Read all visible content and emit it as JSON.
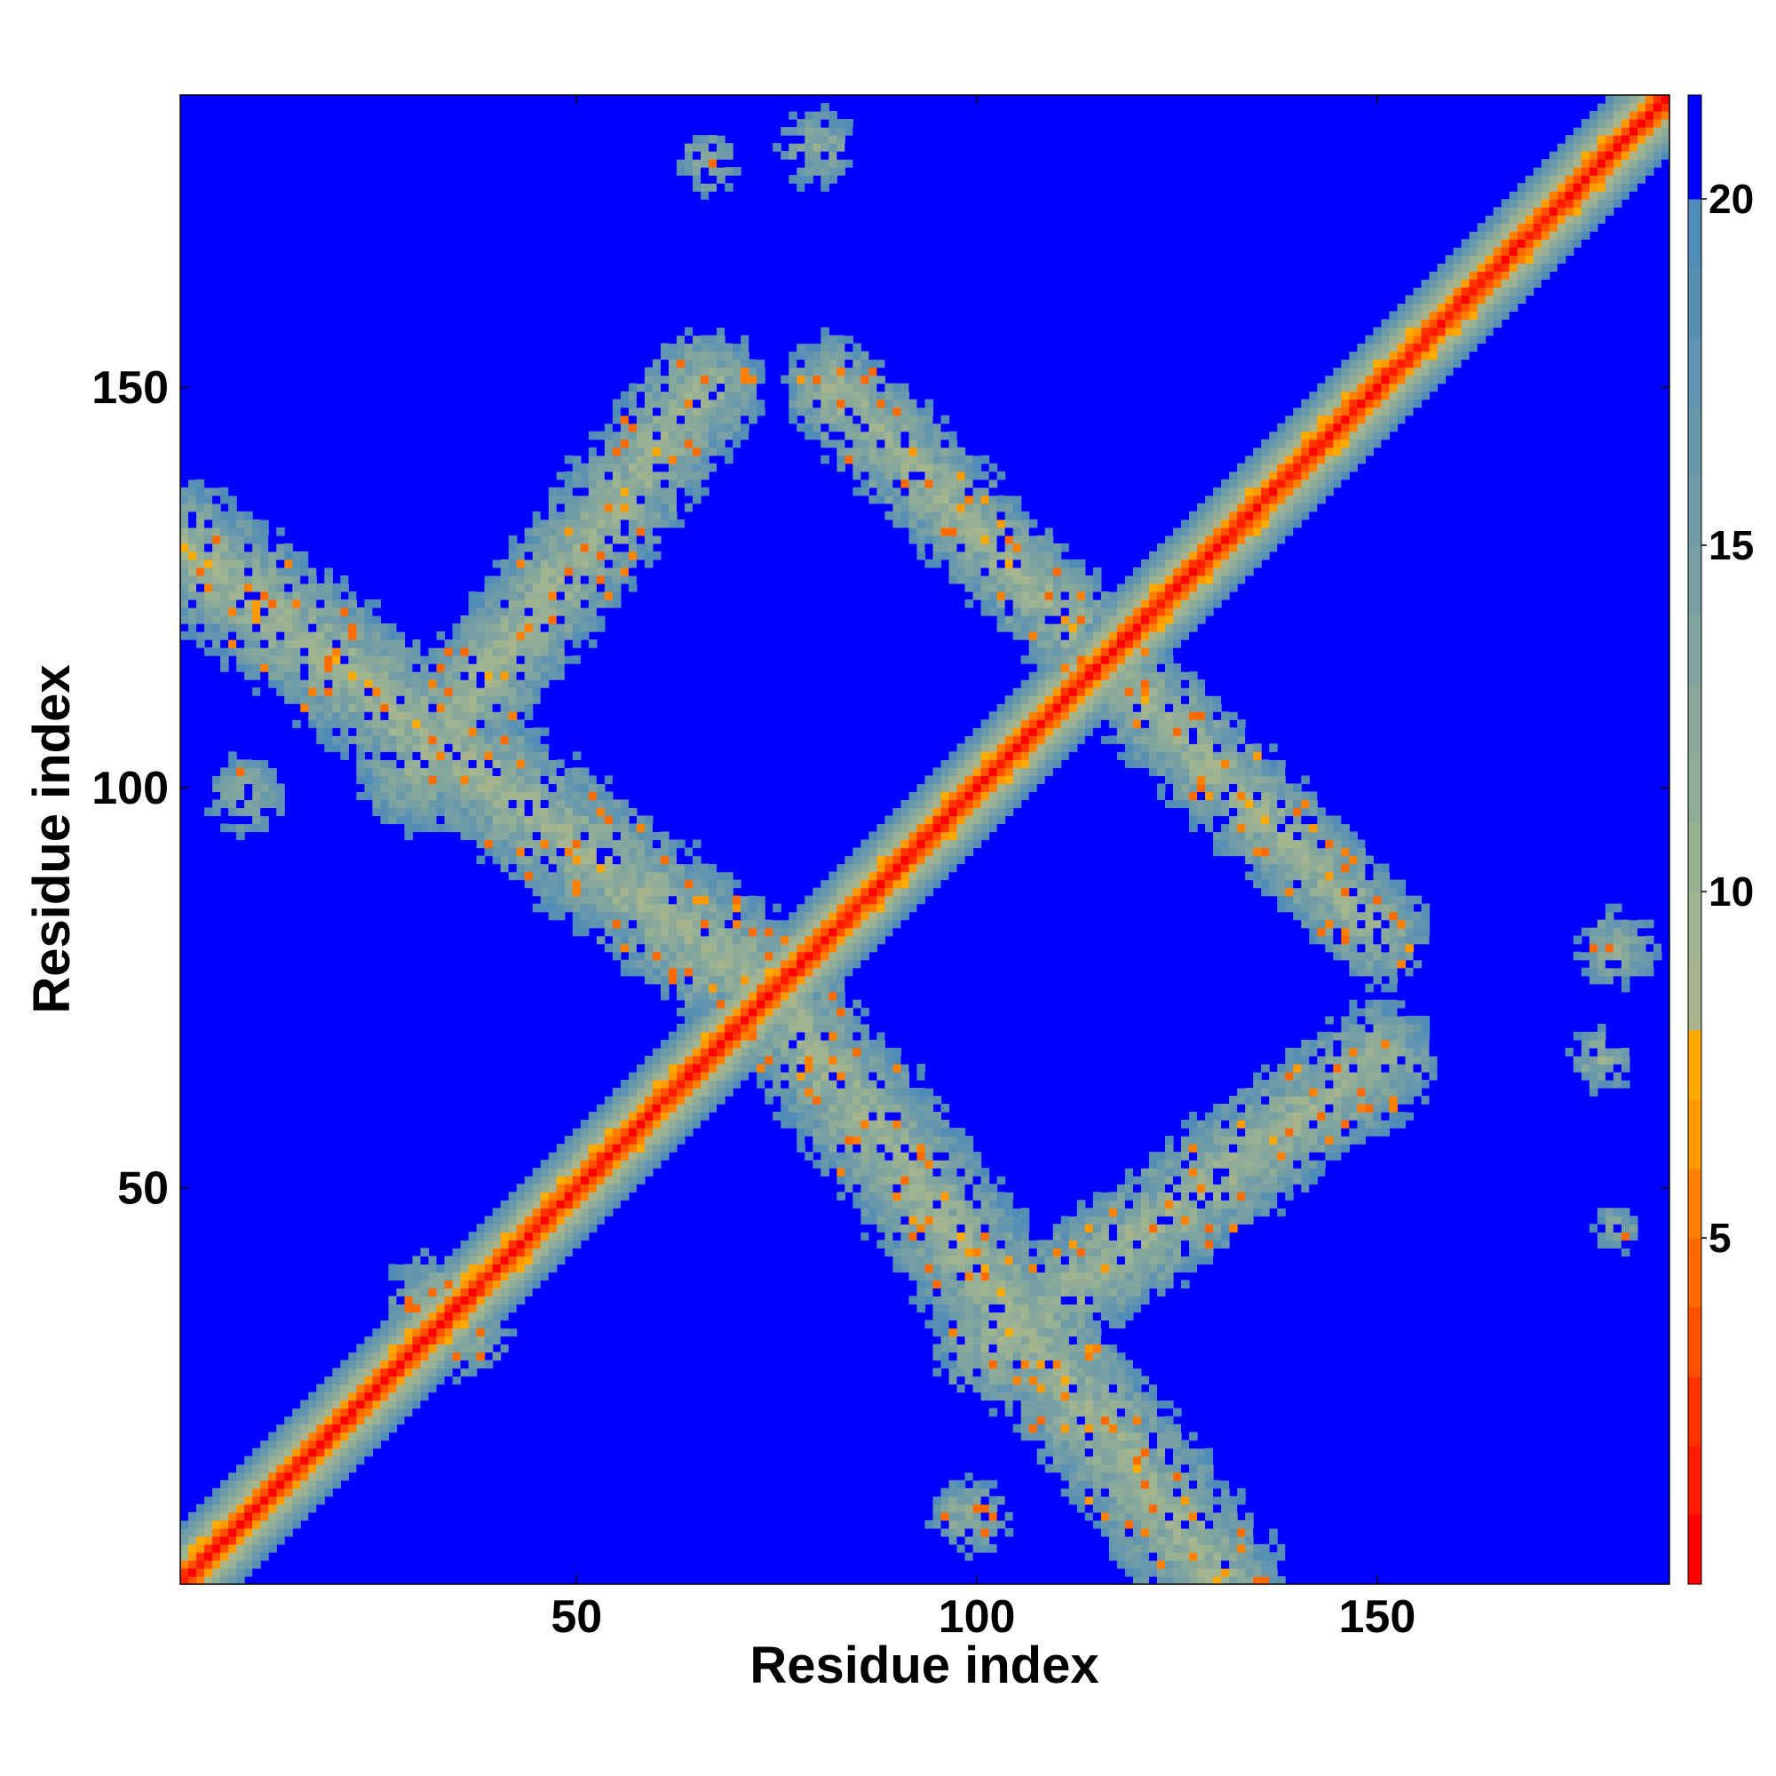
{
  "chart_data": {
    "type": "heatmap",
    "title": "",
    "xlabel": "Residue index",
    "ylabel": "Residue index",
    "n_residues": 186,
    "xlim": [
      1,
      186
    ],
    "ylim": [
      1,
      186
    ],
    "x_ticks": [
      50,
      100,
      150
    ],
    "y_ticks": [
      50,
      100,
      150
    ],
    "colorbar": {
      "range": [
        0,
        21.5
      ],
      "ticks": [
        5,
        10,
        15,
        20
      ],
      "levels": [
        {
          "max": 1,
          "color": "#ff0000"
        },
        {
          "max": 2,
          "color": "#ff1a00"
        },
        {
          "max": 3,
          "color": "#ff3300"
        },
        {
          "max": 4,
          "color": "#ff5000"
        },
        {
          "max": 5,
          "color": "#ff6a00"
        },
        {
          "max": 6,
          "color": "#ff8000"
        },
        {
          "max": 7,
          "color": "#ff9a00"
        },
        {
          "max": 8,
          "color": "#ffaa00"
        },
        {
          "max": 9,
          "color": "#a8b48c"
        },
        {
          "max": 10,
          "color": "#a0b490"
        },
        {
          "max": 11,
          "color": "#98b094"
        },
        {
          "max": 12,
          "color": "#90ac98"
        },
        {
          "max": 13,
          "color": "#88a89c"
        },
        {
          "max": 14,
          "color": "#80a4a0"
        },
        {
          "max": 15,
          "color": "#78a0a4"
        },
        {
          "max": 16,
          "color": "#709ca8"
        },
        {
          "max": 17,
          "color": "#6898ac"
        },
        {
          "max": 18,
          "color": "#6094b0"
        },
        {
          "max": 19,
          "color": "#5890b4"
        },
        {
          "max": 20,
          "color": "#508cb8"
        },
        {
          "max": 21.5,
          "color": "#0000ff"
        }
      ]
    },
    "bands": [
      {
        "kind": "diagonal",
        "from": [
          1,
          1
        ],
        "to": [
          186,
          186
        ],
        "width": 8.5
      },
      {
        "kind": "off-diagonal",
        "from": [
          1,
          130
        ],
        "to": [
          72,
          76
        ],
        "width": 9
      },
      {
        "kind": "off-diagonal",
        "from": [
          76,
          72
        ],
        "to": [
          130,
          1
        ],
        "width": 9
      },
      {
        "kind": "off-diagonal",
        "from": [
          30,
          102
        ],
        "to": [
          66,
          150
        ],
        "width": 8
      },
      {
        "kind": "off-diagonal",
        "from": [
          102,
          30
        ],
        "to": [
          150,
          66
        ],
        "width": 8
      },
      {
        "kind": "off-diagonal",
        "from": [
          82,
          150
        ],
        "to": [
          112,
          120
        ],
        "width": 7
      },
      {
        "kind": "off-diagonal",
        "from": [
          120,
          112
        ],
        "to": [
          150,
          82
        ],
        "width": 7
      }
    ],
    "patches": [
      {
        "center": [
          9,
          99
        ],
        "radius": 5
      },
      {
        "center": [
          99,
          9
        ],
        "radius": 5
      },
      {
        "center": [
          66,
          178
        ],
        "radius": 4
      },
      {
        "center": [
          178,
          66
        ],
        "radius": 4
      },
      {
        "center": [
          80,
          180
        ],
        "radius": 5
      },
      {
        "center": [
          180,
          80
        ],
        "radius": 5
      },
      {
        "center": [
          32,
          36
        ],
        "radius": 6
      },
      {
        "center": [
          36,
          32
        ],
        "radius": 6
      },
      {
        "center": [
          180,
          45
        ],
        "radius": 3
      },
      {
        "center": [
          179,
          79
        ],
        "radius": 4
      }
    ]
  }
}
